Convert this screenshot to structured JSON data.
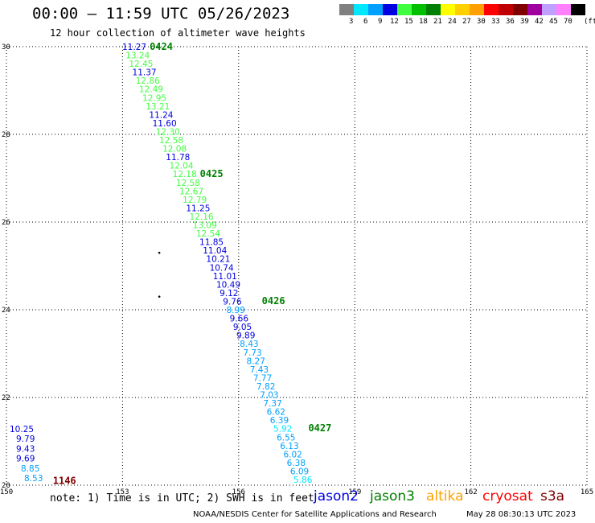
{
  "header": {
    "title": "00:00 – 11:59 UTC 05/26/2023",
    "subtitle": "12 hour collection of altimeter wave heights"
  },
  "colorbar": {
    "unit": "(ft)",
    "swatches": [
      {
        "color": "#808080",
        "label": "3"
      },
      {
        "color": "#00e8ff",
        "label": "6"
      },
      {
        "color": "#00a0ff",
        "label": "9"
      },
      {
        "color": "#0000e0",
        "label": "12"
      },
      {
        "color": "#40ff40",
        "label": "15"
      },
      {
        "color": "#00c000",
        "label": "18"
      },
      {
        "color": "#008000",
        "label": "21"
      },
      {
        "color": "#ffff00",
        "label": "24"
      },
      {
        "color": "#ffd000",
        "label": "27"
      },
      {
        "color": "#ffa000",
        "label": "30"
      },
      {
        "color": "#ff0000",
        "label": "33"
      },
      {
        "color": "#c00000",
        "label": "36"
      },
      {
        "color": "#800000",
        "label": "39"
      },
      {
        "color": "#a000a0",
        "label": "42"
      },
      {
        "color": "#c0a0ff",
        "label": "45"
      },
      {
        "color": "#ff80ff",
        "label": "70"
      },
      {
        "color": "#000000",
        "label": ""
      }
    ]
  },
  "map": {
    "lon_ticks": [
      "150",
      "153",
      "156",
      "159",
      "162",
      "165"
    ],
    "lat_ticks": [
      "30",
      "28",
      "26",
      "24",
      "22",
      "20"
    ],
    "lon_range": [
      150,
      165
    ],
    "lat_range": [
      20,
      30
    ],
    "time_labels": [
      {
        "text": "0424",
        "lon": 153.7,
        "lat": 30.0,
        "color": "#008000"
      },
      {
        "text": "0425",
        "lon": 155.0,
        "lat": 27.1,
        "color": "#008000"
      },
      {
        "text": "0426",
        "lon": 156.6,
        "lat": 24.2,
        "color": "#008000"
      },
      {
        "text": "0427",
        "lon": 157.8,
        "lat": 21.3,
        "color": "#008000"
      },
      {
        "text": "1146",
        "lon": 151.2,
        "lat": 20.1,
        "color": "#800000"
      }
    ],
    "dots": [
      {
        "lon": 153.95,
        "lat": 25.3
      },
      {
        "lon": 153.95,
        "lat": 24.3
      }
    ],
    "track_readings": [
      {
        "text": "11.27",
        "color": "#0000e0"
      },
      {
        "text": "13.24",
        "color": "#40ff40"
      },
      {
        "text": "12.45",
        "color": "#40ff40"
      },
      {
        "text": "11.37",
        "color": "#0000e0"
      },
      {
        "text": "12.86",
        "color": "#40ff40"
      },
      {
        "text": "12.49",
        "color": "#40ff40"
      },
      {
        "text": "12.95",
        "color": "#40ff40"
      },
      {
        "text": "13.21",
        "color": "#40ff40"
      },
      {
        "text": "11.24",
        "color": "#0000e0"
      },
      {
        "text": "11.60",
        "color": "#0000e0"
      },
      {
        "text": "12.30",
        "color": "#40ff40"
      },
      {
        "text": "12.58",
        "color": "#40ff40"
      },
      {
        "text": "12.08",
        "color": "#40ff40"
      },
      {
        "text": "11.78",
        "color": "#0000e0"
      },
      {
        "text": "12.04",
        "color": "#40ff40"
      },
      {
        "text": "12.18",
        "color": "#40ff40"
      },
      {
        "text": "12.58",
        "color": "#40ff40"
      },
      {
        "text": "12.67",
        "color": "#40ff40"
      },
      {
        "text": "12.79",
        "color": "#40ff40"
      },
      {
        "text": "11.25",
        "color": "#0000e0"
      },
      {
        "text": "12.16",
        "color": "#40ff40"
      },
      {
        "text": "13.09",
        "color": "#40ff40"
      },
      {
        "text": "12.54",
        "color": "#40ff40"
      },
      {
        "text": "11.85",
        "color": "#0000e0"
      },
      {
        "text": "11.04",
        "color": "#0000e0"
      },
      {
        "text": "10.21",
        "color": "#0000e0"
      },
      {
        "text": "10.74",
        "color": "#0000e0"
      },
      {
        "text": "11.01",
        "color": "#0000e0"
      },
      {
        "text": "10.49",
        "color": "#0000e0"
      },
      {
        "text": "9.12",
        "color": "#0000e0"
      },
      {
        "text": "9.76",
        "color": "#0000e0"
      },
      {
        "text": "8.99",
        "color": "#00a0ff"
      },
      {
        "text": "9.66",
        "color": "#0000e0"
      },
      {
        "text": "9.05",
        "color": "#0000e0"
      },
      {
        "text": "9.89",
        "color": "#0000e0"
      },
      {
        "text": "8.43",
        "color": "#00a0ff"
      },
      {
        "text": "7.73",
        "color": "#00a0ff"
      },
      {
        "text": "8.27",
        "color": "#00a0ff"
      },
      {
        "text": "7.43",
        "color": "#00a0ff"
      },
      {
        "text": "7.77",
        "color": "#00a0ff"
      },
      {
        "text": "7.82",
        "color": "#00a0ff"
      },
      {
        "text": "7.03",
        "color": "#00a0ff"
      },
      {
        "text": "7.37",
        "color": "#00a0ff"
      },
      {
        "text": "6.62",
        "color": "#00a0ff"
      },
      {
        "text": "6.39",
        "color": "#00a0ff"
      },
      {
        "text": "5.92",
        "color": "#00e8ff"
      },
      {
        "text": "6.55",
        "color": "#00a0ff"
      },
      {
        "text": "6.13",
        "color": "#00a0ff"
      },
      {
        "text": "6.02",
        "color": "#00a0ff"
      },
      {
        "text": "6.38",
        "color": "#00a0ff"
      },
      {
        "text": "6.09",
        "color": "#00a0ff"
      },
      {
        "text": "5.86",
        "color": "#00e8ff"
      }
    ],
    "corner_readings": [
      {
        "text": "10.25",
        "color": "#0000e0"
      },
      {
        "text": "9.79",
        "color": "#0000e0"
      },
      {
        "text": "9.43",
        "color": "#0000e0"
      },
      {
        "text": "9.69",
        "color": "#0000e0"
      },
      {
        "text": "8.85",
        "color": "#00a0ff"
      },
      {
        "text": "8.53",
        "color": "#00a0ff"
      }
    ]
  },
  "footer": {
    "note": "note: 1) Time is in UTC; 2) SWH is in feet",
    "satellites": [
      {
        "name": "jason2",
        "color": "#0000e0"
      },
      {
        "name": "jason3",
        "color": "#008000"
      },
      {
        "name": "altika",
        "color": "#ffa000"
      },
      {
        "name": "cryosat",
        "color": "#ff0000"
      },
      {
        "name": "s3a",
        "color": "#800000"
      }
    ],
    "credit": "NOAA/NESDIS Center for Satellite Applications and Research",
    "timestamp": "May 28 08:30:13 UTC 2023"
  }
}
